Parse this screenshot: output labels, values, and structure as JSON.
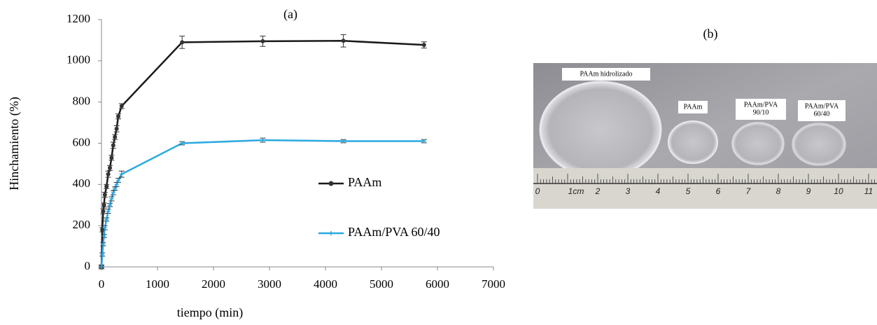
{
  "chart_data": {
    "type": "line",
    "panel_label": "(a)",
    "x_label": "tiempo  (min)",
    "y_label": "Hinchamiento (%)",
    "x": [
      0,
      15,
      30,
      45,
      60,
      90,
      120,
      150,
      180,
      210,
      240,
      270,
      300,
      360,
      1440,
      2880,
      4320,
      5760
    ],
    "series": [
      {
        "name": "PAAm",
        "color": "#1a1a1a",
        "marker": "circle",
        "values": [
          0,
          180,
          270,
          300,
          350,
          390,
          450,
          480,
          530,
          590,
          630,
          670,
          730,
          780,
          1090,
          1095,
          1097,
          1077
        ],
        "errors": [
          10,
          10,
          12,
          10,
          12,
          10,
          15,
          12,
          12,
          15,
          12,
          15,
          12,
          12,
          30,
          25,
          30,
          15
        ]
      },
      {
        "name": "PAAm/PVA 60/40",
        "color": "#29a8e0",
        "marker": "plus",
        "values": [
          0,
          60,
          110,
          150,
          190,
          230,
          270,
          300,
          330,
          360,
          380,
          400,
          420,
          450,
          600,
          615,
          610,
          610
        ],
        "errors": [
          5,
          8,
          8,
          8,
          10,
          8,
          10,
          8,
          10,
          10,
          8,
          10,
          10,
          15,
          8,
          10,
          8,
          8
        ]
      }
    ],
    "xlim": [
      0,
      7000
    ],
    "xticks": [
      0,
      1000,
      2000,
      3000,
      4000,
      5000,
      6000,
      7000
    ],
    "ylim": [
      0,
      1200
    ],
    "yticks": [
      0,
      200,
      400,
      600,
      800,
      1000,
      1200
    ],
    "grid": false
  },
  "photo": {
    "panel_label": "(b)",
    "labels": [
      "PAAm hidrolizado",
      "PAAm",
      "PAAm/PVA\n90/10",
      "PAAm/PVA\n60/40"
    ],
    "ruler_labels": [
      "0",
      "1cm",
      "2",
      "3",
      "4",
      "5",
      "6",
      "7",
      "8",
      "9",
      "10",
      "11"
    ]
  }
}
